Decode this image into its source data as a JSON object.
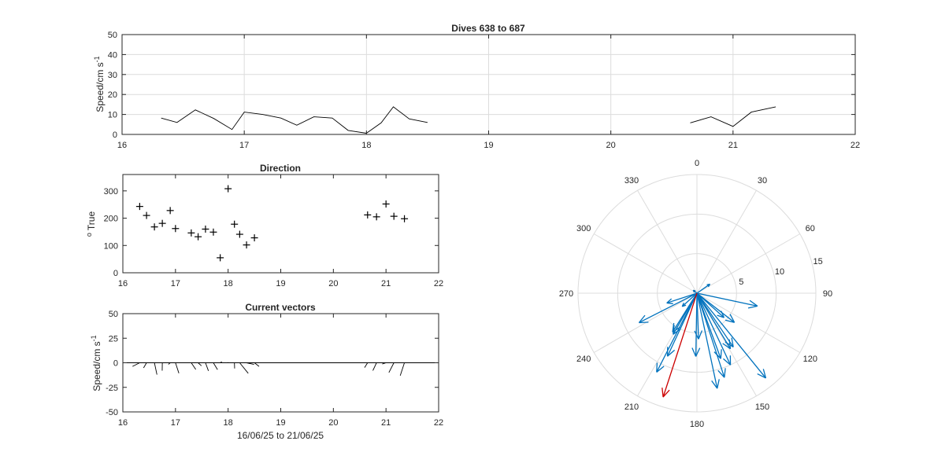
{
  "colors": {
    "axis": "#262626",
    "grid": "#dcdcdc",
    "line": "#000000",
    "vector_blue": "#0072bd",
    "vector_red": "#cc0000"
  },
  "chart_data": [
    {
      "id": "speed",
      "type": "line",
      "title": "Dives 638 to 687",
      "xlabel": "",
      "ylabel": "Speed/cm s",
      "ylabel_exp": "-1",
      "xlim": [
        16,
        22
      ],
      "ylim": [
        0,
        50
      ],
      "xticks": [
        16,
        17,
        18,
        19,
        20,
        21,
        22
      ],
      "yticks": [
        0,
        10,
        20,
        30,
        40,
        50
      ],
      "grid": true,
      "segments": [
        {
          "x": [
            16.32,
            16.45,
            16.6,
            16.75,
            16.9,
            17.0,
            17.15,
            17.3,
            17.43,
            17.57,
            17.72,
            17.85,
            18.0,
            18.12,
            18.22,
            18.35,
            18.5
          ],
          "y": [
            8.2,
            6.0,
            12.3,
            8.0,
            2.5,
            11.2,
            10.0,
            8.2,
            4.6,
            8.8,
            8.2,
            2.0,
            0.6,
            5.8,
            13.8,
            7.8,
            6.0
          ]
        },
        {
          "x": [
            20.65,
            20.82,
            21.0,
            21.15,
            21.35
          ],
          "y": [
            5.8,
            8.8,
            4.0,
            11.2,
            13.8
          ]
        }
      ]
    },
    {
      "id": "direction",
      "type": "scatter",
      "title": "Direction",
      "xlabel": "",
      "ylabel": "True",
      "ylabel_sup": "o",
      "marker": "+",
      "xlim": [
        16,
        22
      ],
      "ylim": [
        0,
        360
      ],
      "xticks": [
        16,
        17,
        18,
        19,
        20,
        21,
        22
      ],
      "yticks": [
        0,
        100,
        200,
        300
      ],
      "grid": false,
      "x": [
        16.32,
        16.45,
        16.6,
        16.75,
        16.9,
        17.0,
        17.3,
        17.43,
        17.57,
        17.72,
        17.85,
        18.0,
        18.12,
        18.22,
        18.35,
        18.5,
        20.65,
        20.82,
        21.0,
        21.15,
        21.35
      ],
      "y": [
        243,
        210,
        168,
        181,
        228,
        162,
        146,
        132,
        160,
        149,
        55,
        308,
        178,
        141,
        102,
        128,
        212,
        205,
        252,
        207,
        198
      ]
    },
    {
      "id": "vectors",
      "type": "quiver",
      "title": "Current vectors",
      "xlabel": "16/06/25 to 21/06/25",
      "ylabel": "Speed/cm s",
      "ylabel_exp": "-1",
      "xlim": [
        16,
        22
      ],
      "ylim": [
        -50,
        50
      ],
      "xticks": [
        16,
        17,
        18,
        19,
        20,
        21,
        22
      ],
      "yticks": [
        -50,
        -25,
        0,
        25,
        50
      ],
      "grid": false,
      "x": [
        16.32,
        16.45,
        16.6,
        16.75,
        16.9,
        17.0,
        17.3,
        17.43,
        17.57,
        17.72,
        17.85,
        18.0,
        18.12,
        18.22,
        18.35,
        18.5,
        20.65,
        20.82,
        21.0,
        21.15,
        21.35
      ],
      "speed": [
        8.2,
        6.0,
        12.3,
        8.0,
        2.5,
        11.2,
        8.2,
        4.6,
        8.8,
        8.2,
        2.0,
        0.6,
        5.8,
        13.8,
        7.8,
        6.0,
        5.8,
        8.8,
        4.0,
        11.2,
        13.8
      ],
      "direction": [
        243,
        210,
        168,
        181,
        228,
        162,
        146,
        132,
        160,
        149,
        55,
        308,
        178,
        141,
        102,
        128,
        212,
        205,
        252,
        207,
        198
      ]
    },
    {
      "id": "polar",
      "type": "polar-quiver",
      "title": "",
      "theta_ticks": [
        0,
        30,
        60,
        90,
        120,
        150,
        180,
        210,
        240,
        270,
        300,
        330
      ],
      "r_ticks": [
        5,
        10,
        15
      ],
      "rlim": [
        0,
        15
      ],
      "zero_at": "top",
      "direction": "clockwise",
      "vectors": [
        {
          "dir": 243,
          "speed": 8.2,
          "color": "blue"
        },
        {
          "dir": 210,
          "speed": 6.0,
          "color": "blue"
        },
        {
          "dir": 168,
          "speed": 12.3,
          "color": "blue"
        },
        {
          "dir": 181,
          "speed": 8.0,
          "color": "blue"
        },
        {
          "dir": 228,
          "speed": 2.5,
          "color": "blue"
        },
        {
          "dir": 162,
          "speed": 11.2,
          "color": "blue"
        },
        {
          "dir": 155,
          "speed": 10.0,
          "color": "blue"
        },
        {
          "dir": 146,
          "speed": 8.2,
          "color": "blue"
        },
        {
          "dir": 132,
          "speed": 4.6,
          "color": "blue"
        },
        {
          "dir": 160,
          "speed": 8.8,
          "color": "blue"
        },
        {
          "dir": 149,
          "speed": 8.2,
          "color": "blue"
        },
        {
          "dir": 55,
          "speed": 2.0,
          "color": "blue"
        },
        {
          "dir": 308,
          "speed": 0.6,
          "color": "blue"
        },
        {
          "dir": 178,
          "speed": 5.8,
          "color": "blue"
        },
        {
          "dir": 141,
          "speed": 13.8,
          "color": "blue"
        },
        {
          "dir": 102,
          "speed": 7.8,
          "color": "blue"
        },
        {
          "dir": 128,
          "speed": 6.0,
          "color": "blue"
        },
        {
          "dir": 212,
          "speed": 5.8,
          "color": "blue"
        },
        {
          "dir": 205,
          "speed": 8.8,
          "color": "blue"
        },
        {
          "dir": 252,
          "speed": 4.0,
          "color": "blue"
        },
        {
          "dir": 207,
          "speed": 11.2,
          "color": "blue"
        },
        {
          "dir": 198,
          "speed": 13.8,
          "color": "red"
        }
      ]
    }
  ]
}
